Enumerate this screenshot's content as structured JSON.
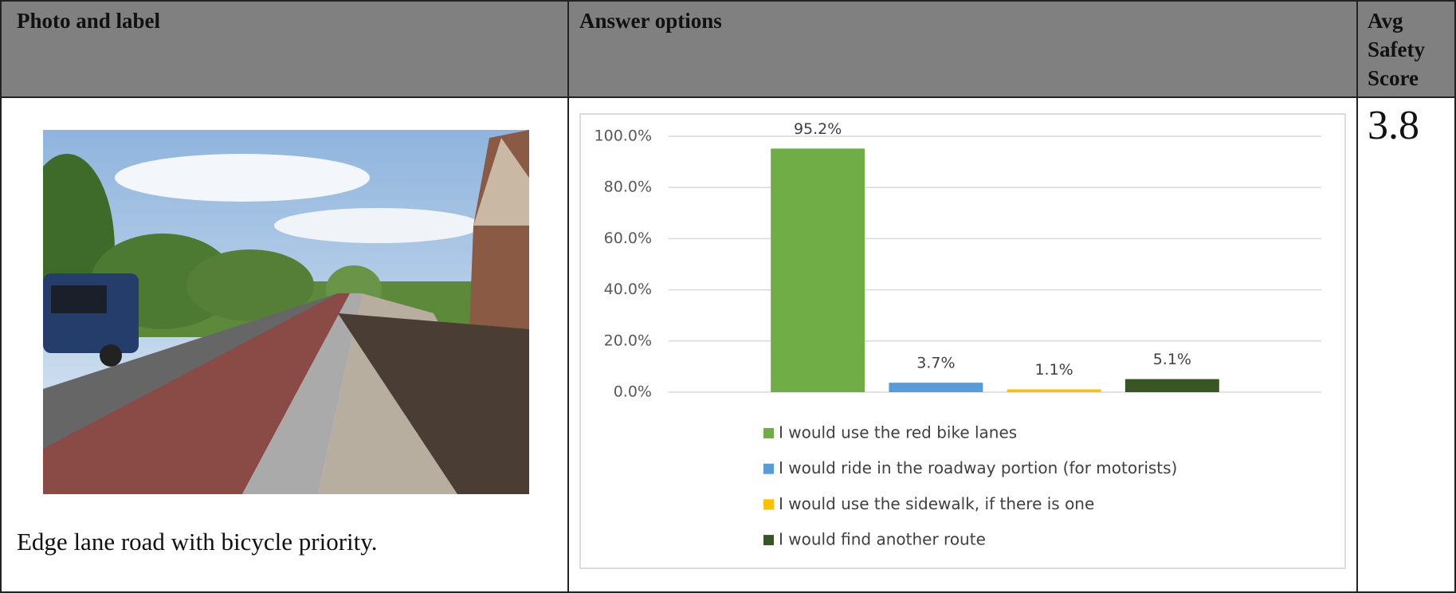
{
  "table": {
    "headers": [
      "Photo and label",
      "Answer options",
      "Avg Safety Score"
    ],
    "caption": "Edge lane road with bicycle priority.",
    "score": 3.8
  },
  "chart_data": {
    "type": "bar",
    "categories": [
      null
    ],
    "series": [
      {
        "name": "I would use the red bike lanes",
        "color": "#70ad47",
        "values": [
          95.2
        ],
        "value_labels": [
          "95.2%"
        ]
      },
      {
        "name": "I would ride in the roadway portion (for motorists)",
        "color": "#5b9bd5",
        "values": [
          3.7
        ],
        "value_labels": [
          "3.7%"
        ]
      },
      {
        "name": "I would use the sidewalk, if there is one",
        "color": "#ffc000",
        "values": [
          1.1
        ],
        "value_labels": [
          "1.1%"
        ]
      },
      {
        "name": "I would find another route",
        "color": "#375623",
        "values": [
          5.1
        ],
        "value_labels": [
          "5.1%"
        ]
      }
    ],
    "ylim": [
      0,
      100
    ],
    "yticks": [
      {
        "value": 0,
        "label": "0.0%"
      },
      {
        "value": 20,
        "label": "20.0%"
      },
      {
        "value": 40,
        "label": "40.0%"
      },
      {
        "value": 60,
        "label": "60.0%"
      },
      {
        "value": 80,
        "label": "80.0%"
      },
      {
        "value": 100,
        "label": "100.0%"
      }
    ],
    "grid": true
  }
}
